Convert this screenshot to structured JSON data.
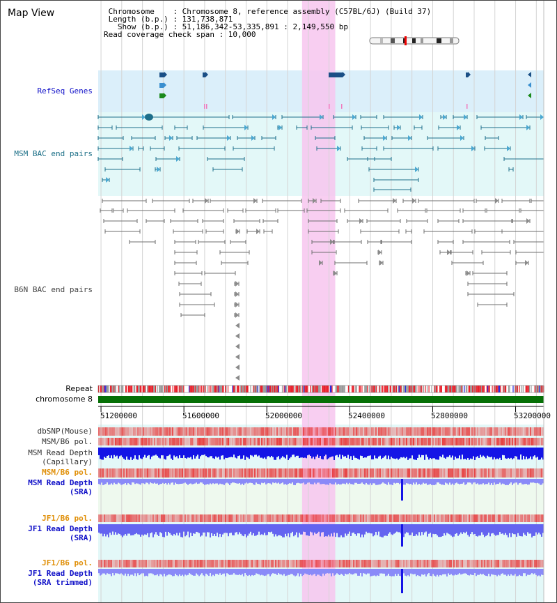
{
  "header": {
    "title": "Map View",
    "info_lines": [
      " Chromosome    : Chromosome 8, reference assembly (C57BL/6J) (Build 37)",
      " Length (b.p.) : 131,738,871",
      "   Show (b.p.) : 51,186,342-53,335,891 : 2,149,550 bp",
      "Read coverage check span : 10,000"
    ]
  },
  "view": {
    "start": 51186342,
    "end": 53335891,
    "highlight_start": 52170000,
    "highlight_end": 52330000
  },
  "colors": {
    "refseq_bg": "#dbeffa",
    "msm_bac_bg": "#e3f8f8",
    "lower_bg": "#e3f8f8",
    "green_bg": "#eef9ee",
    "highlight": "#f7c6ee",
    "gene": "#1a4f86",
    "msm_bac": "#1d6e8a",
    "b6n_bac": "#6e6e6e",
    "repeat_red": "#e8202a",
    "chromosome": "#067006",
    "depth_dark": "#1414e6",
    "depth_light": "#8a8af8",
    "pol_red": "#f28a8a",
    "label_blue": "#1010c8",
    "label_orange": "#e0900a",
    "label_teal": "#1a6e86"
  },
  "tracks": {
    "refseq_genes": "RefSeq Genes",
    "msm_bac": "MSM BAC end pairs",
    "b6n_bac": "B6N BAC end pairs",
    "repeat": "Repeat",
    "chromosome": "chromosome 8",
    "dbsnp": "dbSNP(Mouse)",
    "msm_b6_pol_1": "MSM/B6 pol.",
    "msm_depth_cap_1": "MSM Read Depth",
    "msm_depth_cap_2": "(Capillary)",
    "msm_b6_pol_2": "MSM/B6 pol.",
    "msm_depth_sra_1": "MSM Read Depth",
    "msm_depth_sra_2": "(SRA)",
    "jf1_b6_pol_1": "JF1/B6 pol.",
    "jf1_depth_sra_1": "JF1 Read Depth",
    "jf1_depth_sra_2": "(SRA)",
    "jf1_b6_pol_2": "JF1/B6 pol.",
    "jf1_depth_trim_1": "JF1 Read Depth",
    "jf1_depth_trim_2": "(SRA trimmed)"
  },
  "axis": {
    "ticks": [
      "51200000",
      "51600000",
      "52000000",
      "52400000",
      "52800000",
      "53200000"
    ],
    "tick_values": [
      51200000,
      51600000,
      52000000,
      52400000,
      52800000,
      53200000
    ]
  }
}
